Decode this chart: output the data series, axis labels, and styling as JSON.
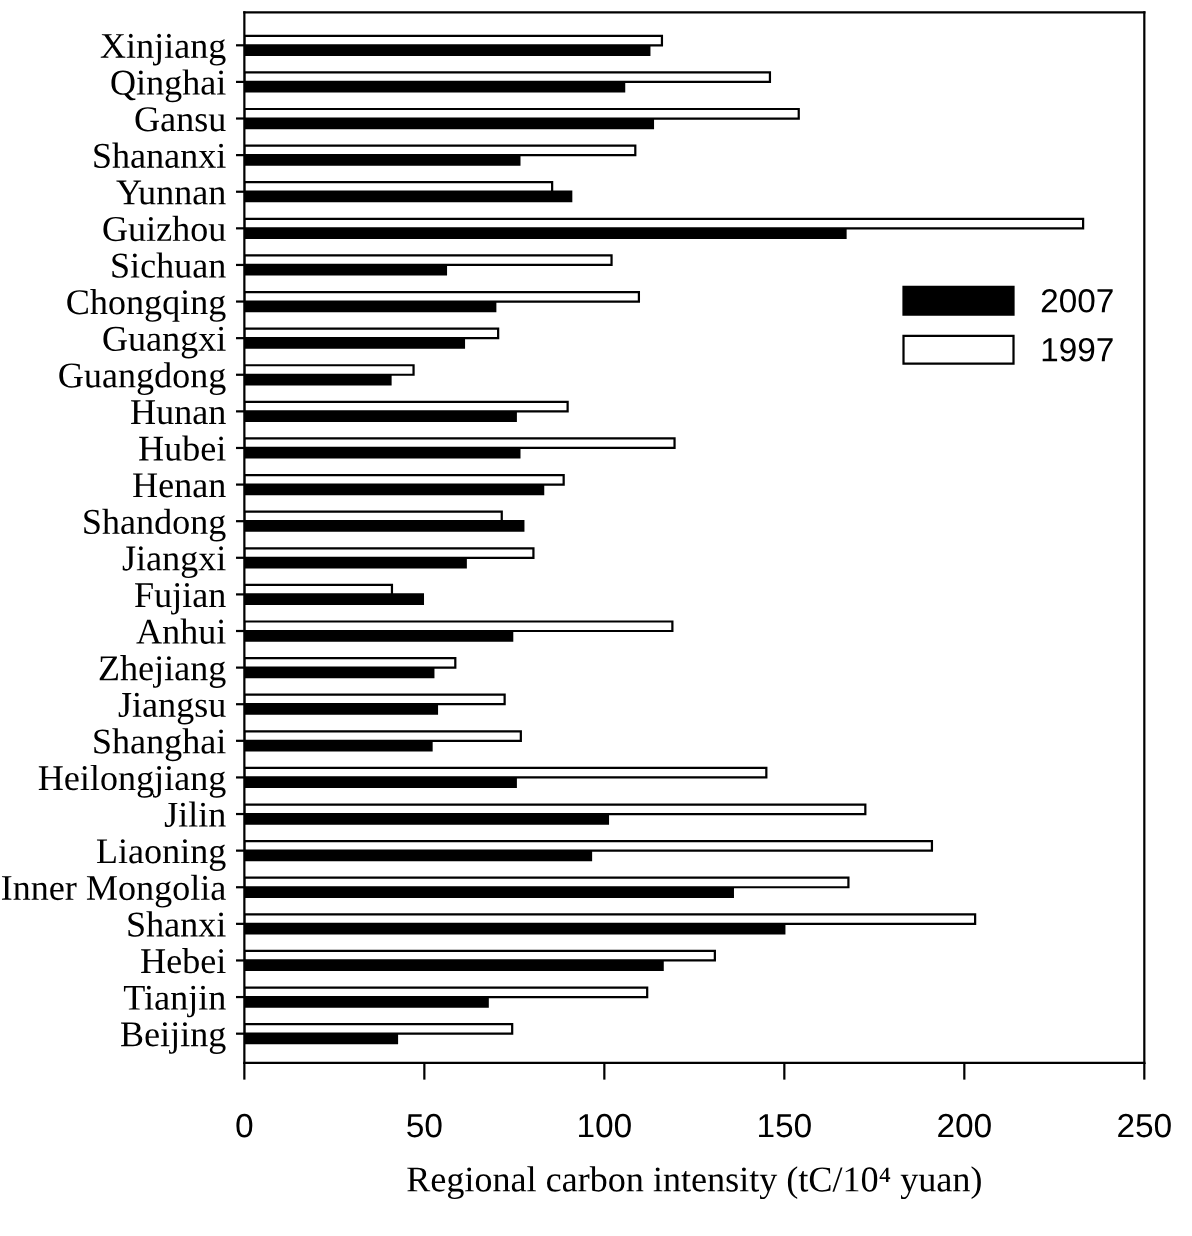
{
  "chart_data": {
    "type": "bar",
    "orientation": "horizontal",
    "xlabel": "Regional carbon intensity (tC/10⁴ yuan)",
    "categories": [
      "Xinjiang",
      "Qinghai",
      "Gansu",
      "Shananxi",
      "Yunnan",
      "Guizhou",
      "Sichuan",
      "Chongqing",
      "Guangxi",
      "Guangdong",
      "Hunan",
      "Hubei",
      "Henan",
      "Shandong",
      "Jiangxi",
      "Fujian",
      "Anhui",
      "Zhejiang",
      "Jiangsu",
      "Shanghai",
      "Heilongjiang",
      "Jilin",
      "Liaoning",
      "Inner Mongolia",
      "Shanxi",
      "Hebei",
      "Tianjin",
      "Beijing"
    ],
    "series": [
      {
        "name": "2007",
        "color": "#000000",
        "values": [
          112.5,
          105.5,
          113.5,
          76.4,
          90.8,
          167,
          56,
          69.7,
          61,
          40.6,
          75.4,
          76.4,
          83,
          77.5,
          61.5,
          49.6,
          74.4,
          52.5,
          53.5,
          52,
          75.4,
          101,
          96.3,
          135.7,
          150,
          116.2,
          67.6,
          42.4
        ]
      },
      {
        "name": "1997",
        "color": "#ffffff",
        "values": [
          116,
          146,
          154,
          108.6,
          85.5,
          233,
          102,
          109.6,
          70.5,
          47,
          89.8,
          119.5,
          88.7,
          71.5,
          80.3,
          41,
          118.9,
          58.6,
          72.3,
          76.8,
          145,
          172.5,
          191,
          167.8,
          203,
          130.7,
          111.9,
          74.4
        ]
      }
    ],
    "xlim": [
      0,
      250
    ],
    "xticks": [
      0,
      50,
      100,
      150,
      200,
      250
    ],
    "grid": false,
    "legend": "right"
  }
}
